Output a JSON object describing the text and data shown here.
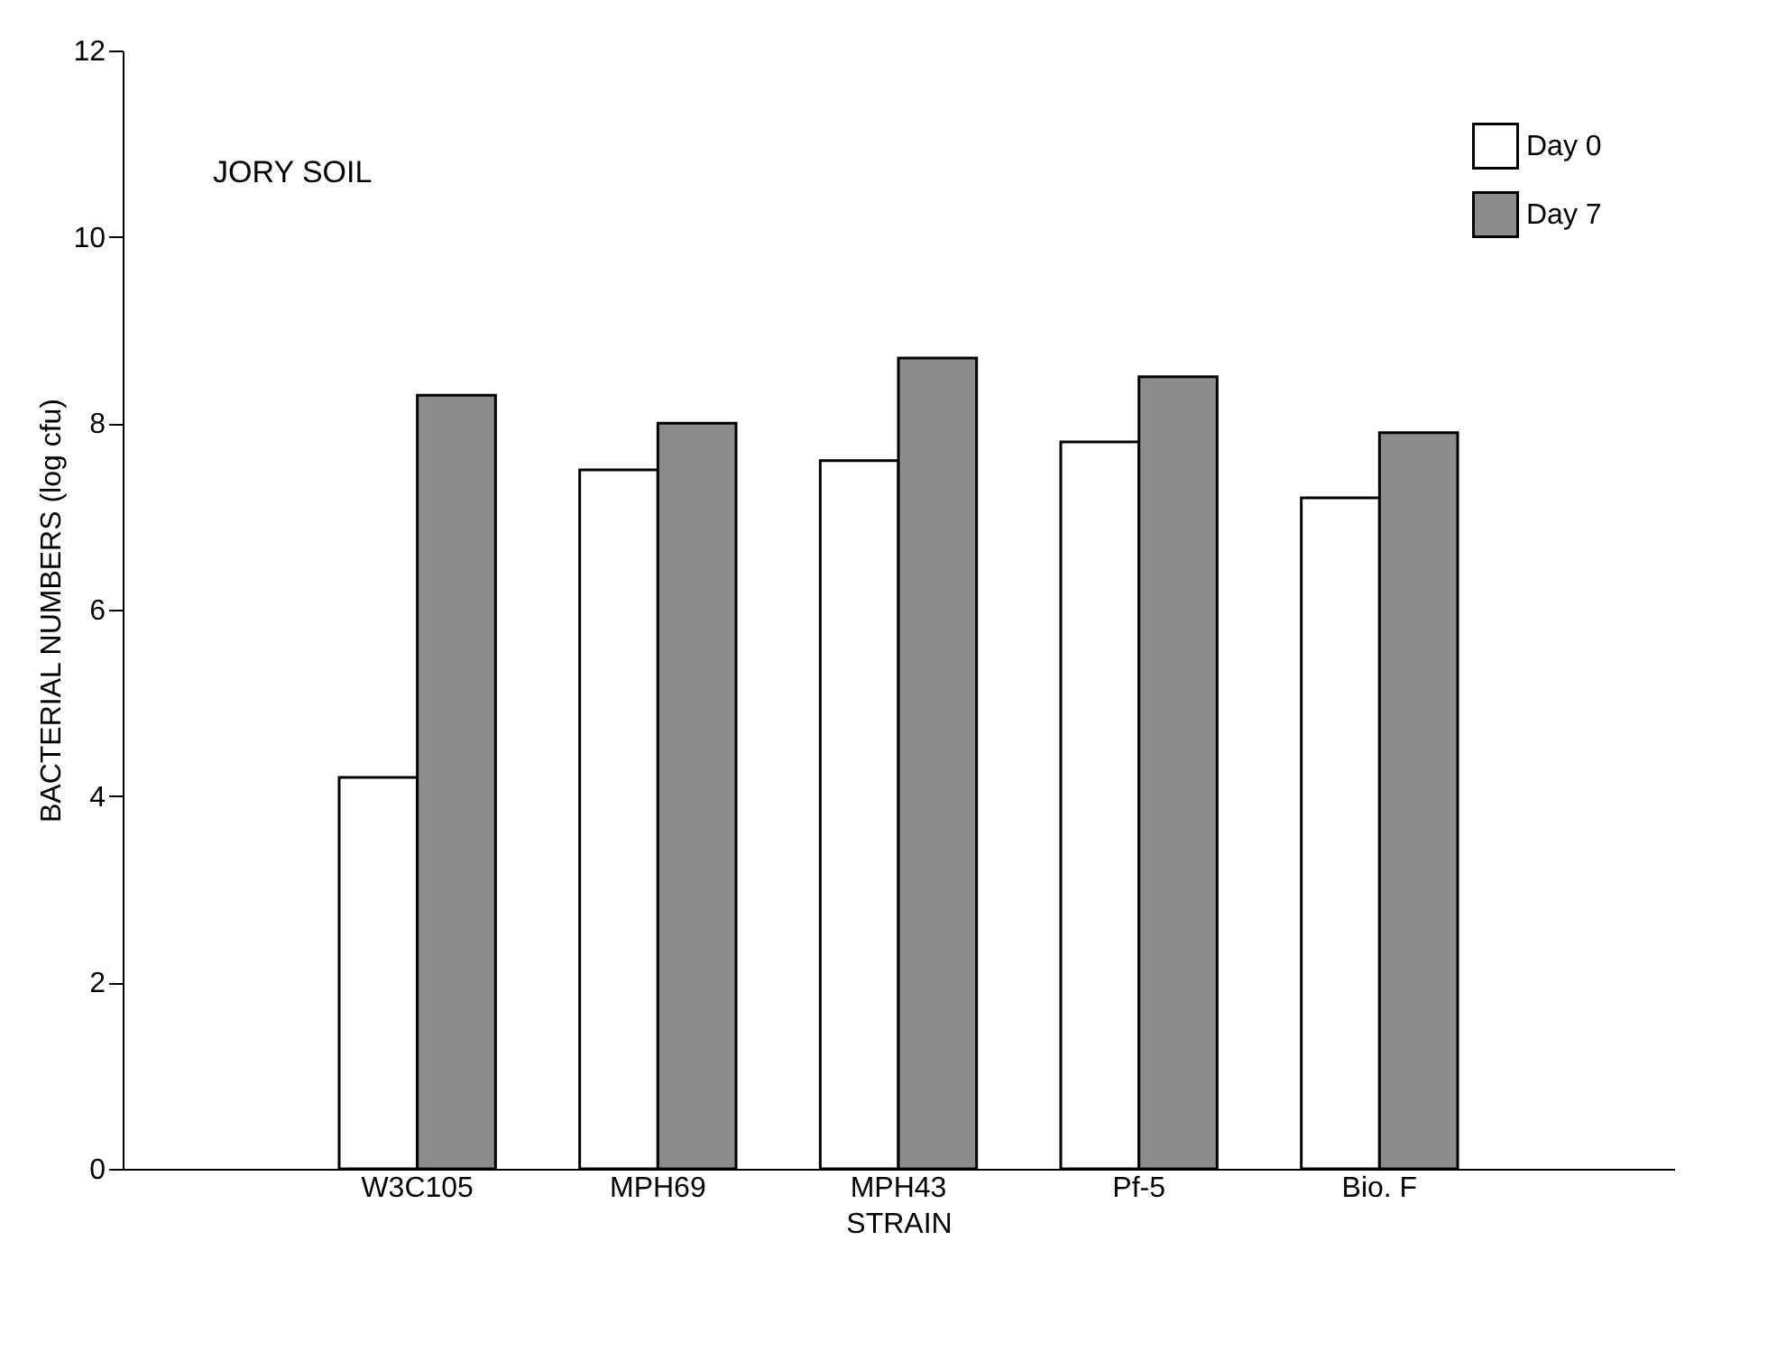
{
  "chart_data": {
    "type": "bar",
    "categories": [
      "W3C105",
      "MPH69",
      "MPH43",
      "Pf-5",
      "Bio. F"
    ],
    "series": [
      {
        "name": "Day 0",
        "color": "#ffffff",
        "values": [
          4.2,
          7.5,
          7.6,
          7.8,
          7.2
        ]
      },
      {
        "name": "Day 7",
        "color": "#8c8c8c",
        "values": [
          8.3,
          8.0,
          8.7,
          8.5,
          7.9
        ]
      }
    ],
    "xlabel": "STRAIN",
    "ylabel": "BACTERIAL NUMBERS (log cfu)",
    "ylim": [
      0,
      12
    ],
    "yticks": [
      0,
      2,
      4,
      6,
      8,
      10,
      12
    ],
    "annotations": [
      "JORY SOIL"
    ],
    "legend": "top right",
    "grid": false
  }
}
